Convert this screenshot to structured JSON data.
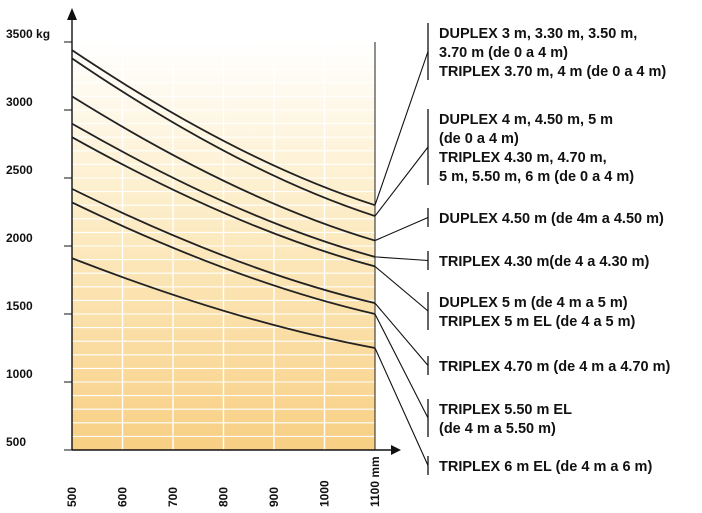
{
  "chart_data": {
    "type": "line",
    "title": "",
    "xlabel": "",
    "ylabel": "",
    "x_unit": "mm",
    "y_unit": "kg",
    "xlim": [
      500,
      1100
    ],
    "ylim": [
      500,
      3500
    ],
    "x_ticks": [
      500,
      600,
      700,
      800,
      900,
      1000,
      1100
    ],
    "x_tick_labels": [
      "500",
      "600",
      "700",
      "800",
      "900",
      "1000",
      "1100 mm"
    ],
    "y_ticks": [
      500,
      1000,
      1500,
      2000,
      2500,
      3000,
      3500
    ],
    "y_tick_labels": [
      "500",
      "1000",
      "1500",
      "2000",
      "2500",
      "3000",
      "3500 kg"
    ],
    "grid": "horizontal",
    "background": "gradient white (top) to light orange (bottom)",
    "legend_position": "right, with leader lines to curve ends",
    "series": [
      {
        "x": [
          500,
          1100
        ],
        "y": [
          3440,
          2300
        ]
      },
      {
        "x": [
          500,
          1100
        ],
        "y": [
          3380,
          2220
        ]
      },
      {
        "x": [
          500,
          1100
        ],
        "y": [
          3100,
          2040
        ]
      },
      {
        "x": [
          500,
          1100
        ],
        "y": [
          2900,
          1920
        ]
      },
      {
        "x": [
          500,
          1100
        ],
        "y": [
          2800,
          1850
        ]
      },
      {
        "x": [
          500,
          1100
        ],
        "y": [
          2420,
          1580
        ]
      },
      {
        "x": [
          500,
          1100
        ],
        "y": [
          2320,
          1500
        ]
      },
      {
        "x": [
          500,
          1100
        ],
        "y": [
          1910,
          1250
        ]
      }
    ],
    "legend": [
      {
        "lines": [
          "DUPLEX 3 m, 3.30 m, 3.50 m,",
          "3.70 m (de 0 a 4 m)",
          "TRIPLEX 3.70 m, 4 m (de 0 a 4 m)"
        ]
      },
      {
        "lines": [
          "DUPLEX 4 m, 4.50 m, 5 m",
          "(de 0 a 4 m)",
          "TRIPLEX 4.30 m, 4.70 m,",
          "5 m, 5.50 m, 6 m (de 0 a 4 m)"
        ]
      },
      {
        "lines": [
          "DUPLEX 4.50 m (de 4m a 4.50 m)"
        ]
      },
      {
        "lines": [
          "TRIPLEX 4.30 m(de 4 a 4.30 m)"
        ]
      },
      {
        "lines": [
          "DUPLEX 5 m (de 4 m a 5 m)",
          "TRIPLEX 5 m  EL (de 4 a 5 m)"
        ]
      },
      {
        "lines": [
          "TRIPLEX 4.70 m (de 4 m a 4.70 m)"
        ]
      },
      {
        "lines": [
          "TRIPLEX 5.50 m EL",
          "(de 4 m a 5.50 m)"
        ]
      },
      {
        "lines": [
          "TRIPLEX 6 m EL (de 4 m a 6 m)"
        ]
      }
    ]
  }
}
